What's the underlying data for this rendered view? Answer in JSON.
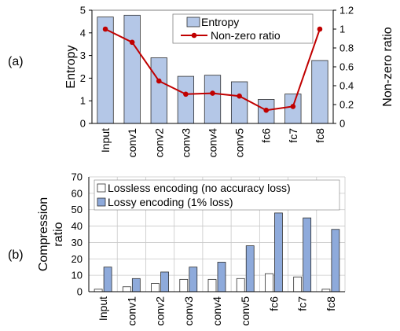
{
  "chart_data": [
    {
      "type": "bar+line",
      "panel_label": "(a)",
      "categories": [
        "Input",
        "conv1",
        "conv2",
        "conv3",
        "conv4",
        "conv5",
        "fc6",
        "fc7",
        "fc8"
      ],
      "series": [
        {
          "name": "Entropy",
          "kind": "bar",
          "axis": "left",
          "values": [
            4.7,
            4.78,
            2.9,
            2.08,
            2.13,
            1.84,
            1.06,
            1.3,
            2.78
          ]
        },
        {
          "name": "Non-zero ratio",
          "kind": "line",
          "axis": "right",
          "values": [
            1.0,
            0.86,
            0.45,
            0.31,
            0.32,
            0.29,
            0.14,
            0.18,
            1.0
          ]
        }
      ],
      "ylabel": "Entropy",
      "ylabel_right": "Non-zero ratio",
      "ylim": [
        0,
        5
      ],
      "ylim_right": [
        0,
        1.2
      ],
      "yticks": [
        "0",
        "1",
        "2",
        "3",
        "4",
        "5"
      ],
      "yticks_right": [
        "0",
        "0.2",
        "0.4",
        "0.6",
        "0.8",
        "1",
        "1.2"
      ],
      "grid": false,
      "legend": "top-center",
      "colors": {
        "bar_fill": "#b4c7e7",
        "bar_stroke": "#2f2f2f",
        "line": "#c00000"
      }
    },
    {
      "type": "bar",
      "panel_label": "(b)",
      "categories": [
        "Input",
        "conv1",
        "conv2",
        "conv3",
        "conv4",
        "conv5",
        "fc6",
        "fc7",
        "fc8"
      ],
      "series": [
        {
          "name": "Lossless encoding (no accuracy loss)",
          "values": [
            1.5,
            3,
            5,
            7.5,
            7.5,
            8,
            11,
            9,
            1.5
          ]
        },
        {
          "name": "Lossy encoding (1% loss)",
          "values": [
            15,
            8,
            12,
            15,
            18,
            28,
            48,
            45,
            38
          ]
        }
      ],
      "ylabel": "Compression ratio",
      "ylabel_lines": [
        "Compression",
        "ratio"
      ],
      "ylim": [
        0,
        70
      ],
      "yticks": [
        "0",
        "10",
        "20",
        "30",
        "40",
        "50",
        "60",
        "70"
      ],
      "grid": true,
      "legend": "top-left",
      "colors": {
        "lossless_fill": "#ffffff",
        "lossy_fill": "#8eaadb",
        "bar_stroke": "#2f2f2f",
        "grid": "#c8c8c8"
      }
    }
  ]
}
